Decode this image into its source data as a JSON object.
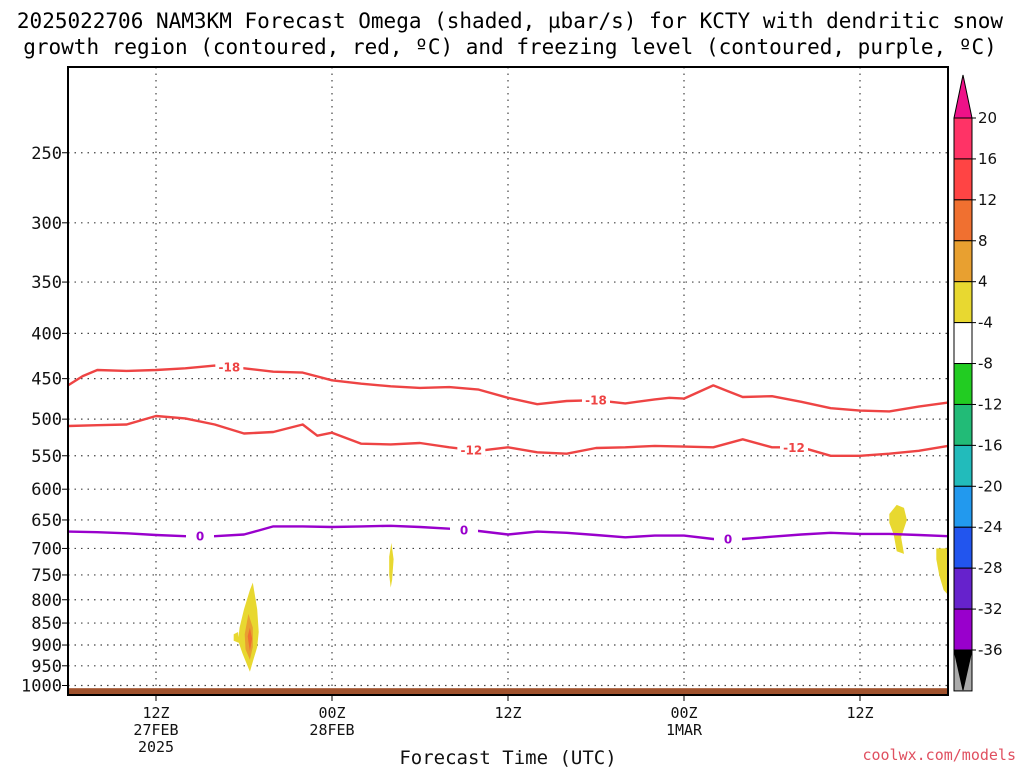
{
  "chart_data": {
    "type": "contour",
    "title_line1": "2025022706 NAM3KM Forecast Omega (shaded, µbar/s) for KCTY with dendritic snow",
    "title_line2": "growth region (contoured, red, ºC) and freezing level (contoured, purple, ºC)",
    "xlabel": "Forecast Time (UTC)",
    "credit": "coolwx.com/models",
    "x_range_hours": [
      0,
      60
    ],
    "y_scale": "pressure",
    "ylim": [
      1025,
      200
    ],
    "y_ticks": [
      250,
      300,
      350,
      400,
      450,
      500,
      550,
      600,
      650,
      700,
      750,
      800,
      850,
      900,
      950,
      1000
    ],
    "x_ticks": [
      {
        "hour": 6,
        "lines": [
          "12Z",
          "27FEB",
          "2025"
        ]
      },
      {
        "hour": 18,
        "lines": [
          "00Z",
          "28FEB"
        ]
      },
      {
        "hour": 30,
        "lines": [
          "12Z"
        ]
      },
      {
        "hour": 42,
        "lines": [
          "00Z",
          "1MAR"
        ]
      },
      {
        "hour": 54,
        "lines": [
          "12Z"
        ]
      }
    ],
    "colorbar": {
      "ticks": [
        20,
        16,
        12,
        8,
        4,
        -4,
        -8,
        -12,
        -16,
        -20,
        -24,
        -28,
        -32,
        -36
      ],
      "colors": [
        "#ff3366",
        "#ff4444",
        "#f07030",
        "#e8a030",
        "#e8d830",
        "#ffffff",
        "#22cc22",
        "#22bb77",
        "#22bbbb",
        "#2299ee",
        "#2255ee",
        "#6622cc",
        "#9900cc",
        "#aaaaaa"
      ],
      "top_triangle_color": "#ee1188",
      "bottom_triangle_color": "#000000"
    },
    "series": [
      {
        "name": "-18",
        "color": "#ee4444",
        "x": [
          0,
          1,
          2,
          4,
          6,
          8,
          10,
          12,
          14,
          16,
          18,
          20,
          22,
          24,
          26,
          28,
          30,
          32,
          34,
          36,
          38,
          40,
          41,
          42,
          44,
          45,
          46,
          48,
          50,
          52,
          54,
          56,
          58,
          60
        ],
        "y": [
          458,
          447,
          440,
          441,
          440,
          438,
          435,
          438,
          442,
          443,
          452,
          456,
          459,
          461,
          460,
          463,
          473,
          481,
          477,
          476,
          480,
          475,
          473,
          474,
          458,
          465,
          472,
          471,
          478,
          486,
          489,
          490,
          484,
          479
        ],
        "labels": [
          {
            "x": 11,
            "text": "-18"
          },
          {
            "x": 36,
            "text": "-18"
          }
        ]
      },
      {
        "name": "-12",
        "color": "#ee4444",
        "x": [
          0,
          2,
          4,
          6,
          8,
          10,
          12,
          14,
          16,
          17,
          18,
          20,
          22,
          24,
          26,
          28,
          30,
          32,
          34,
          36,
          38,
          40,
          42,
          44,
          46,
          48,
          50,
          52,
          54,
          56,
          58,
          60
        ],
        "y": [
          509,
          508,
          507,
          496,
          499,
          507,
          519,
          517,
          507,
          522,
          518,
          533,
          534,
          532,
          538,
          543,
          538,
          545,
          547,
          539,
          538,
          536,
          537,
          538,
          527,
          538,
          538,
          550,
          550,
          547,
          543,
          536
        ],
        "labels": [
          {
            "x": 27.5,
            "text": "-12"
          },
          {
            "x": 49.5,
            "text": "-12"
          }
        ]
      },
      {
        "name": "0",
        "color": "#9900cc",
        "x": [
          0,
          2,
          4,
          6,
          8,
          10,
          12,
          13,
          14,
          16,
          18,
          20,
          22,
          24,
          26,
          28,
          30,
          32,
          34,
          36,
          38,
          40,
          42,
          44,
          46,
          48,
          50,
          52,
          54,
          56,
          58,
          60
        ],
        "y": [
          670,
          671,
          673,
          676,
          678,
          678,
          675,
          668,
          661,
          661,
          662,
          661,
          660,
          662,
          665,
          669,
          675,
          670,
          672,
          676,
          680,
          677,
          677,
          683,
          683,
          679,
          675,
          672,
          674,
          674,
          676,
          678
        ],
        "labels": [
          {
            "x": 9,
            "text": "0"
          },
          {
            "x": 27,
            "text": "0"
          },
          {
            "x": 45,
            "text": "0"
          }
        ]
      }
    ],
    "shaded_regions": [
      {
        "value_range": [
          4,
          8
        ],
        "color": "#e8d830",
        "points": [
          [
            11.7,
            860
          ],
          [
            12.0,
            820
          ],
          [
            12.4,
            780
          ],
          [
            12.6,
            765
          ],
          [
            12.9,
            820
          ],
          [
            13.0,
            870
          ],
          [
            12.9,
            905
          ],
          [
            12.6,
            940
          ],
          [
            12.4,
            965
          ],
          [
            11.9,
            920
          ],
          [
            11.6,
            890
          ]
        ]
      },
      {
        "value_range": [
          8,
          12
        ],
        "color": "#e8a030",
        "points": [
          [
            12.05,
            875
          ],
          [
            12.3,
            830
          ],
          [
            12.6,
            860
          ],
          [
            12.6,
            905
          ],
          [
            12.4,
            935
          ],
          [
            12.1,
            910
          ]
        ]
      },
      {
        "value_range": [
          12,
          16
        ],
        "color": "#f07030",
        "points": [
          [
            12.25,
            880
          ],
          [
            12.4,
            860
          ],
          [
            12.55,
            885
          ],
          [
            12.4,
            915
          ]
        ]
      },
      {
        "value_range": [
          4,
          8
        ],
        "color": "#e8d830",
        "points": [
          [
            11.3,
            875
          ],
          [
            11.6,
            870
          ],
          [
            11.65,
            895
          ],
          [
            11.3,
            890
          ]
        ]
      },
      {
        "value_range": [
          4,
          8
        ],
        "color": "#e8d830",
        "points": [
          [
            21.9,
            715
          ],
          [
            22.05,
            690
          ],
          [
            22.2,
            720
          ],
          [
            22.1,
            760
          ],
          [
            22.0,
            775
          ],
          [
            21.9,
            750
          ]
        ]
      },
      {
        "value_range": [
          4,
          8
        ],
        "color": "#e8d830",
        "points": [
          [
            56.0,
            640
          ],
          [
            56.5,
            625
          ],
          [
            57.0,
            630
          ],
          [
            57.2,
            650
          ],
          [
            56.8,
            680
          ],
          [
            57.0,
            710
          ],
          [
            56.5,
            705
          ],
          [
            56.3,
            675
          ],
          [
            56.0,
            655
          ]
        ]
      },
      {
        "value_range": [
          4,
          8
        ],
        "color": "#e8d830",
        "points": [
          [
            59.2,
            700
          ],
          [
            60,
            700
          ],
          [
            60,
            790
          ],
          [
            59.7,
            780
          ],
          [
            59.4,
            750
          ],
          [
            59.2,
            720
          ]
        ]
      }
    ],
    "ground": {
      "color": "#a0522d",
      "from_pressure": 1007
    }
  }
}
